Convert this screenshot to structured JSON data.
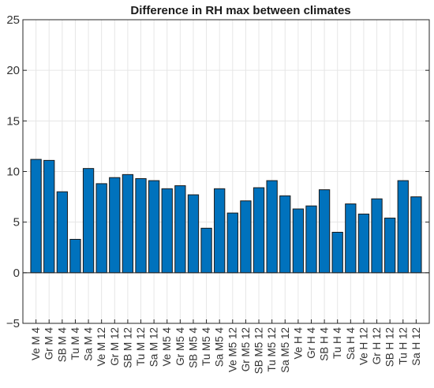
{
  "chart_data": {
    "type": "bar",
    "title": "Difference in RH max between climates",
    "xlabel": "",
    "ylabel": "",
    "ylim": [
      -5,
      25
    ],
    "yticks": [
      -5,
      0,
      5,
      10,
      15,
      20,
      25
    ],
    "grid": true,
    "bar_color": "#0072BD",
    "categories": [
      "Ve M 4",
      "Gr M 4",
      "SB M 4",
      "Tu M 4",
      "Sa M 4",
      "Ve M 12",
      "Gr M 12",
      "SB M 12",
      "Tu M 12",
      "Sa M 12",
      "Ve M5 4",
      "Gr M5 4",
      "SB M5 4",
      "Tu M5 4",
      "Sa M5 4",
      "Ve M5 12",
      "Gr M5 12",
      "SB M5 12",
      "Tu M5 12",
      "Sa M5 12",
      "Ve H 4",
      "Gr H 4",
      "SB H 4",
      "Tu H 4",
      "Sa H 4",
      "Ve H 12",
      "Gr H 12",
      "SB H 12",
      "Tu H 12",
      "Sa H 12"
    ],
    "values": [
      11.2,
      11.1,
      8.0,
      3.3,
      10.3,
      8.8,
      9.4,
      9.7,
      9.3,
      9.1,
      8.3,
      8.6,
      7.7,
      4.4,
      8.3,
      5.9,
      7.1,
      8.4,
      9.1,
      7.6,
      6.3,
      6.6,
      8.2,
      4.0,
      6.8,
      5.8,
      7.3,
      5.4,
      9.1,
      7.5
    ]
  }
}
